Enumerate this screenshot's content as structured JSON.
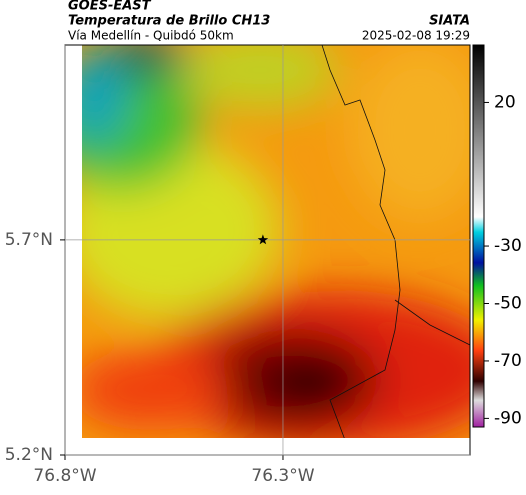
{
  "chart_data": {
    "type": "heatmap",
    "title": "GOES-EAST",
    "subtitle": "Temperatura de Brillo CH13",
    "source": "SIATA",
    "route": "Vía Medellín - Quibdó 50km",
    "datetime": "2025-02-08 19:29",
    "xlim": [
      -76.8,
      -75.871
    ],
    "ylim": [
      5.2,
      6.153
    ],
    "xticks": [
      {
        "value": -76.8,
        "label": "76.8°W"
      },
      {
        "value": -76.3,
        "label": "76.3°W"
      }
    ],
    "yticks": [
      {
        "value": 5.2,
        "label": "5.2°N"
      },
      {
        "value": 5.7,
        "label": "5.7°N"
      }
    ],
    "grid": true,
    "marker": {
      "lon": -76.346,
      "lat": 5.7
    },
    "colorbar": {
      "lim": [
        -93,
        40
      ],
      "ticks": [
        20,
        -30,
        -50,
        -70,
        -90
      ]
    }
  }
}
